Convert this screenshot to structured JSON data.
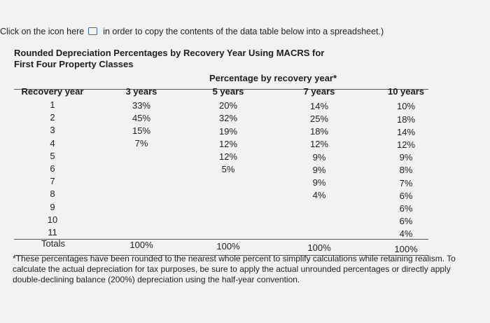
{
  "intro": {
    "before": "Click on the icon here",
    "after": "in order to copy the contents of the data table below into a spreadsheet.)"
  },
  "title": [
    "Rounded Depreciation Percentages by Recovery Year Using MACRS for",
    "First Four Property Classes"
  ],
  "table": {
    "group_header": "Percentage by recovery year*",
    "columns": [
      "Recovery year",
      "3 years",
      "5 years",
      "7 years",
      "10 years"
    ],
    "rows": [
      [
        "1",
        "33%",
        "20%",
        "14%",
        "10%"
      ],
      [
        "2",
        "45%",
        "32%",
        "25%",
        "18%"
      ],
      [
        "3",
        "15%",
        "19%",
        "18%",
        "14%"
      ],
      [
        "4",
        "7%",
        "12%",
        "12%",
        "12%"
      ],
      [
        "5",
        null,
        "12%",
        "9%",
        "9%"
      ],
      [
        "6",
        null,
        "5%",
        "9%",
        "8%"
      ],
      [
        "7",
        null,
        null,
        "9%",
        "7%"
      ],
      [
        "8",
        null,
        null,
        "4%",
        "6%"
      ],
      [
        "9",
        null,
        null,
        null,
        "6%"
      ],
      [
        "10",
        null,
        null,
        null,
        "6%"
      ],
      [
        "11",
        null,
        null,
        null,
        "4%"
      ]
    ],
    "totals": [
      "Totals",
      "100%",
      "100%",
      "100%",
      "100%"
    ]
  },
  "footnote": "*These percentages have been rounded to the nearest whole percent to simplify calculations while retaining realism. To calculate the actual depreciation for tax purposes, be sure to apply the actual unrounded percentages or directly apply double-declining balance (200%) depreciation using the half-year convention."
}
